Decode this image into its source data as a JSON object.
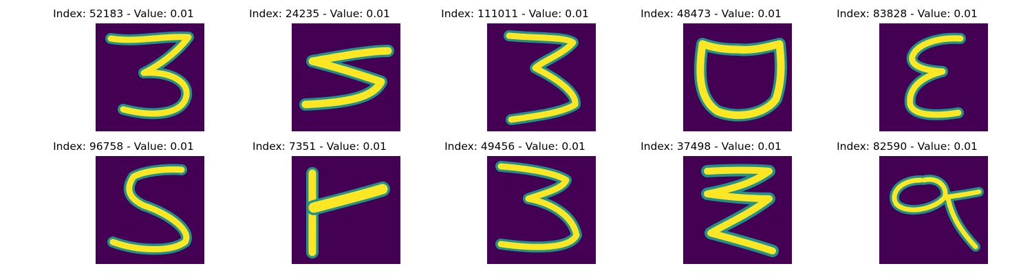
{
  "figure": {
    "panels": [
      {
        "title": "Index: 52183 - Value: 0.01",
        "glyph": "3"
      },
      {
        "title": "Index: 24235 - Value: 0.01",
        "glyph": "3-sideways"
      },
      {
        "title": "Index: 111011 - Value: 0.01",
        "glyph": "3"
      },
      {
        "title": "Index: 48473 - Value: 0.01",
        "glyph": "cup"
      },
      {
        "title": "Index: 83828 - Value: 0.01",
        "glyph": "epsilon"
      },
      {
        "title": "Index: 96758 - Value: 0.01",
        "glyph": "5"
      },
      {
        "title": "Index: 7351 - Value: 0.01",
        "glyph": "F"
      },
      {
        "title": "Index: 49456 - Value: 0.01",
        "glyph": "3"
      },
      {
        "title": "Index: 37498 - Value: 0.01",
        "glyph": "z-stack"
      },
      {
        "title": "Index: 82590 - Value: 0.01",
        "glyph": "loop-q"
      }
    ],
    "colors": {
      "background": "#440154",
      "edge": "#21918c",
      "stroke": "#fde725"
    }
  }
}
